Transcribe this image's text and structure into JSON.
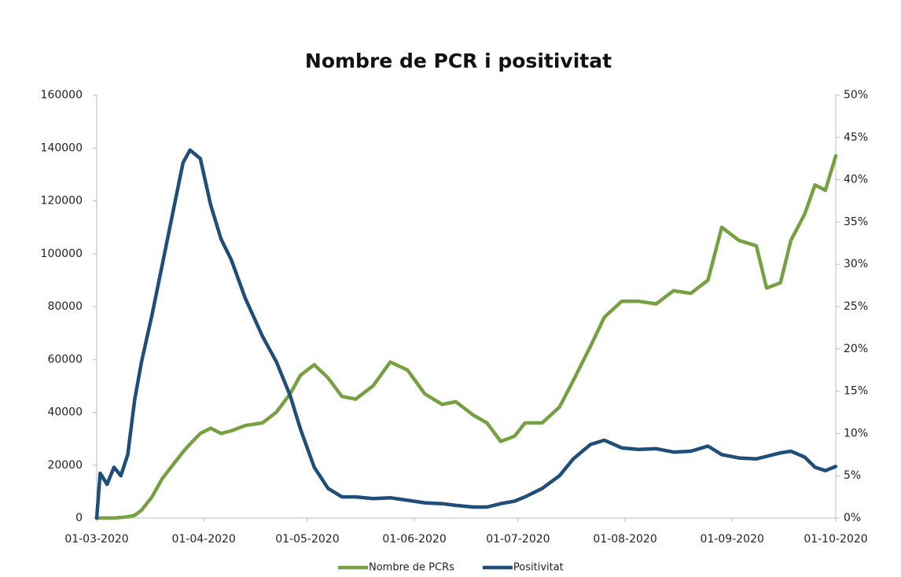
{
  "chart_data": {
    "type": "line",
    "title": "Nombre de PCR i positivitat",
    "x": [
      "2020-03-01",
      "2020-03-02",
      "2020-03-04",
      "2020-03-06",
      "2020-03-08",
      "2020-03-10",
      "2020-03-12",
      "2020-03-14",
      "2020-03-17",
      "2020-03-20",
      "2020-03-23",
      "2020-03-26",
      "2020-03-28",
      "2020-03-31",
      "2020-04-03",
      "2020-04-06",
      "2020-04-09",
      "2020-04-13",
      "2020-04-18",
      "2020-04-22",
      "2020-04-26",
      "2020-04-29",
      "2020-05-03",
      "2020-05-07",
      "2020-05-11",
      "2020-05-15",
      "2020-05-20",
      "2020-05-25",
      "2020-05-30",
      "2020-06-04",
      "2020-06-09",
      "2020-06-13",
      "2020-06-18",
      "2020-06-22",
      "2020-06-26",
      "2020-06-30",
      "2020-07-03",
      "2020-07-08",
      "2020-07-13",
      "2020-07-17",
      "2020-07-22",
      "2020-07-26",
      "2020-07-31",
      "2020-08-05",
      "2020-08-10",
      "2020-08-15",
      "2020-08-20",
      "2020-08-25",
      "2020-08-29",
      "2020-09-03",
      "2020-09-08",
      "2020-09-11",
      "2020-09-15",
      "2020-09-18",
      "2020-09-22",
      "2020-09-25",
      "2020-09-28",
      "2020-10-01"
    ],
    "series": [
      {
        "name": "Nombre de PCRs",
        "color": "#77a043",
        "values": [
          0,
          0,
          0,
          0,
          200,
          500,
          1000,
          3000,
          8000,
          15000,
          20000,
          25000,
          28000,
          32000,
          34000,
          32000,
          33000,
          35000,
          36000,
          40000,
          47000,
          54000,
          58000,
          53000,
          46000,
          45000,
          50000,
          59000,
          56000,
          47000,
          43000,
          44000,
          39000,
          36000,
          29000,
          31000,
          36000,
          36000,
          42000,
          52000,
          65000,
          76000,
          82000,
          82000,
          81000,
          86000,
          85000,
          90000,
          110000,
          105000,
          103000,
          87000,
          89000,
          105000,
          115000,
          126000,
          124000,
          137000
        ]
      },
      {
        "name": "Positivitat",
        "color": "#1f4e79",
        "axis": "y2",
        "values": [
          0,
          5.3,
          4,
          6,
          5,
          7.5,
          14,
          18.5,
          24,
          30,
          36,
          42,
          43.5,
          42.5,
          37,
          33,
          30.5,
          26,
          21.5,
          18.5,
          14.5,
          10.5,
          6,
          3.5,
          2.5,
          2.5,
          2.3,
          2.4,
          2.1,
          1.8,
          1.7,
          1.5,
          1.3,
          1.3,
          1.7,
          2,
          2.5,
          3.5,
          5,
          7,
          8.7,
          9.2,
          8.3,
          8.1,
          8.2,
          7.8,
          7.9,
          8.5,
          7.5,
          7.1,
          7,
          7.3,
          7.7,
          7.9,
          7.2,
          6,
          5.6,
          6.1
        ]
      }
    ],
    "xlim": [
      "2020-03-01",
      "2020-10-01"
    ],
    "xticks": [
      {
        "value": "2020-03-01",
        "label": "01-03-2020"
      },
      {
        "value": "2020-04-01",
        "label": "01-04-2020"
      },
      {
        "value": "2020-05-01",
        "label": "01-05-2020"
      },
      {
        "value": "2020-06-01",
        "label": "01-06-2020"
      },
      {
        "value": "2020-07-01",
        "label": "01-07-2020"
      },
      {
        "value": "2020-08-01",
        "label": "01-08-2020"
      },
      {
        "value": "2020-09-01",
        "label": "01-09-2020"
      },
      {
        "value": "2020-10-01",
        "label": "01-10-2020"
      }
    ],
    "ylim": [
      0,
      160000
    ],
    "yticks": [
      0,
      20000,
      40000,
      60000,
      80000,
      100000,
      120000,
      140000,
      160000
    ],
    "y2lim": [
      0,
      50
    ],
    "y2ticks": [
      {
        "value": 0,
        "label": "0%"
      },
      {
        "value": 5,
        "label": "5%"
      },
      {
        "value": 10,
        "label": "10%"
      },
      {
        "value": 15,
        "label": "15%"
      },
      {
        "value": 20,
        "label": "20%"
      },
      {
        "value": 25,
        "label": "25%"
      },
      {
        "value": 30,
        "label": "30%"
      },
      {
        "value": 35,
        "label": "35%"
      },
      {
        "value": 40,
        "label": "40%"
      },
      {
        "value": 45,
        "label": "45%"
      },
      {
        "value": 50,
        "label": "50%"
      }
    ],
    "legend": "bottom"
  }
}
